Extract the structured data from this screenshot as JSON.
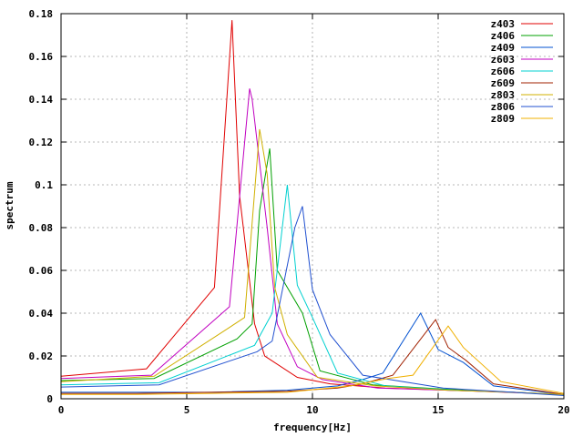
{
  "chart_data": {
    "type": "line",
    "title": "",
    "xlabel": "frequency[Hz]",
    "ylabel": "spectrum",
    "xlim": [
      0,
      20
    ],
    "ylim": [
      0,
      0.18
    ],
    "xticks": [
      0,
      5,
      10,
      15,
      20
    ],
    "xtick_labels": [
      "0",
      "5",
      "10",
      "15",
      "20"
    ],
    "yticks": [
      0,
      0.02,
      0.04,
      0.06,
      0.08,
      0.1,
      0.12,
      0.14,
      0.16,
      0.18
    ],
    "ytick_labels": [
      "0",
      "0.02",
      "0.04",
      "0.06",
      "0.08",
      "0.1",
      "0.12",
      "0.14",
      "0.16",
      "0.18"
    ],
    "grid": true,
    "legend_position": "top-right",
    "series": [
      {
        "name": "z403",
        "color": "#e00000",
        "x": [
          0,
          3.4,
          6.1,
          6.8,
          7.1,
          7.7,
          8.1,
          9.4,
          10.7,
          12.9,
          15.4,
          17.7,
          20
        ],
        "y": [
          0.0105,
          0.014,
          0.052,
          0.177,
          0.095,
          0.035,
          0.02,
          0.01,
          0.007,
          0.005,
          0.004,
          0.003,
          0.002
        ]
      },
      {
        "name": "z406",
        "color": "#00a000",
        "x": [
          0,
          3.7,
          7.0,
          7.6,
          7.9,
          8.3,
          8.6,
          9.6,
          10.3,
          12.4,
          15.2,
          18.0,
          20
        ],
        "y": [
          0.0085,
          0.0095,
          0.028,
          0.035,
          0.088,
          0.117,
          0.06,
          0.04,
          0.013,
          0.0065,
          0.0045,
          0.003,
          0.002
        ]
      },
      {
        "name": "z409",
        "color": "#0050d0",
        "x": [
          0,
          3.0,
          6.0,
          9.0,
          11.0,
          12.0,
          12.8,
          14.3,
          15.0,
          16.0,
          17.2,
          20
        ],
        "y": [
          0.003,
          0.003,
          0.003,
          0.004,
          0.006,
          0.009,
          0.012,
          0.04,
          0.023,
          0.017,
          0.006,
          0.002
        ]
      },
      {
        "name": "z603",
        "color": "#c000c0",
        "x": [
          0,
          3.6,
          6.7,
          7.5,
          7.6,
          8.2,
          8.6,
          9.4,
          10.4,
          12.6,
          15.4,
          18.0,
          20
        ],
        "y": [
          0.0095,
          0.011,
          0.043,
          0.145,
          0.14,
          0.08,
          0.035,
          0.015,
          0.009,
          0.005,
          0.004,
          0.003,
          0.002
        ]
      },
      {
        "name": "z606",
        "color": "#00d0d0",
        "x": [
          0,
          3.9,
          7.7,
          8.4,
          9.0,
          9.4,
          10.0,
          11.0,
          12.9,
          15.6,
          18.0,
          20
        ],
        "y": [
          0.0065,
          0.0075,
          0.025,
          0.04,
          0.1,
          0.053,
          0.038,
          0.012,
          0.006,
          0.004,
          0.003,
          0.002
        ]
      },
      {
        "name": "z609",
        "color": "#a02000",
        "x": [
          0,
          3.0,
          6.0,
          9.0,
          11.0,
          12.0,
          13.2,
          14.9,
          15.4,
          16.1,
          17.2,
          20
        ],
        "y": [
          0.0025,
          0.0025,
          0.003,
          0.0035,
          0.005,
          0.007,
          0.011,
          0.037,
          0.024,
          0.018,
          0.007,
          0.002
        ]
      },
      {
        "name": "z803",
        "color": "#d0b000",
        "x": [
          0,
          3.7,
          6.4,
          7.3,
          7.9,
          8.2,
          8.5,
          9.0,
          10.2,
          12.5,
          15.4,
          18.0,
          20
        ],
        "y": [
          0.008,
          0.0105,
          0.031,
          0.038,
          0.126,
          0.105,
          0.052,
          0.03,
          0.01,
          0.006,
          0.004,
          0.003,
          0.002
        ]
      },
      {
        "name": "z806",
        "color": "#2050d0",
        "x": [
          0,
          3.9,
          7.8,
          8.4,
          9.3,
          9.6,
          10.0,
          10.7,
          12.0,
          15.2,
          18.0,
          20
        ],
        "y": [
          0.0055,
          0.0065,
          0.022,
          0.027,
          0.08,
          0.09,
          0.051,
          0.03,
          0.011,
          0.005,
          0.003,
          0.0015
        ]
      },
      {
        "name": "z809",
        "color": "#f0b000",
        "x": [
          0,
          3.0,
          6.0,
          9.0,
          11.5,
          13.0,
          14.0,
          15.4,
          16.0,
          17.5,
          20
        ],
        "y": [
          0.002,
          0.002,
          0.0025,
          0.003,
          0.006,
          0.0095,
          0.011,
          0.034,
          0.024,
          0.008,
          0.0025
        ]
      }
    ]
  }
}
